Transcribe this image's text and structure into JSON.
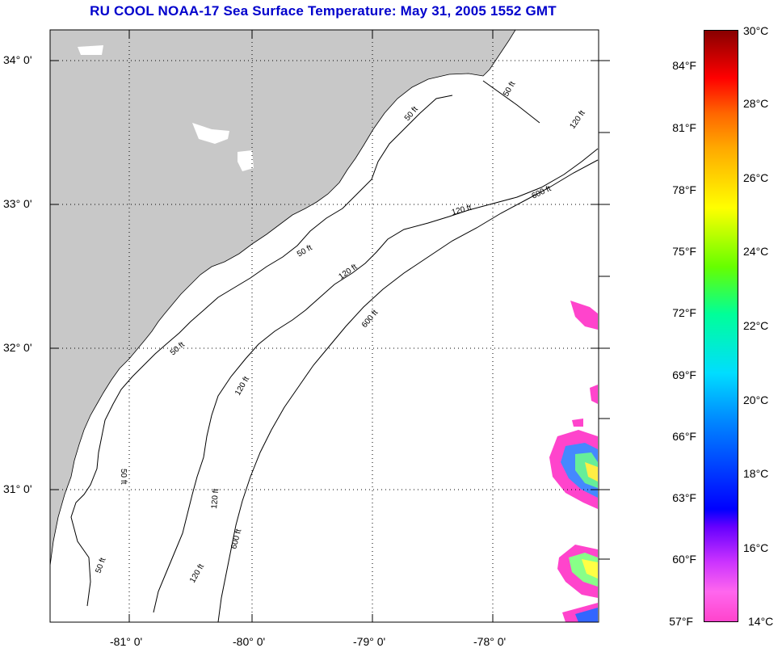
{
  "title": "RU COOL  NOAA-17  Sea Surface Temperature:  May 31, 2005 1552 GMT",
  "latitude_labels": [
    "34° 0'",
    "33° 0'",
    "32° 0'",
    "31° 0'"
  ],
  "longitude_labels": [
    "-81° 0'",
    "-80° 0'",
    "-79° 0'",
    "-78° 0'"
  ],
  "contour_labels": [
    "50 ft",
    "120 ft",
    "600 ft"
  ],
  "colorbar": {
    "fahrenheit": [
      "84°F",
      "81°F",
      "78°F",
      "75°F",
      "72°F",
      "69°F",
      "66°F",
      "63°F",
      "60°F",
      "57°F"
    ],
    "celsius": [
      "30°C",
      "28°C",
      "26°C",
      "24°C",
      "22°C",
      "20°C",
      "18°C",
      "16°C",
      "14°C"
    ]
  },
  "colors": {
    "land": "#c8c8c8",
    "ocean": "#ffffff",
    "title": "#0000cc",
    "grid": "#000000"
  }
}
